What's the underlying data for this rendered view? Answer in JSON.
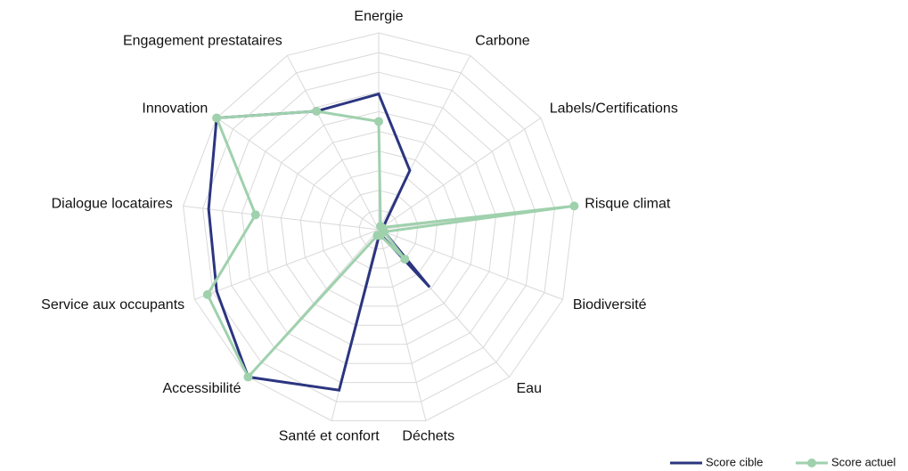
{
  "chart_data": {
    "type": "radar",
    "categories": [
      "Energie",
      "Carbone",
      "Labels/Certifications",
      "Risque climat",
      "Biodiversité",
      "Eau",
      "Déchets",
      "Santé et confort",
      "Accessibilité",
      "Service aux occupants",
      "Dialogue locataires",
      "Innovation",
      "Engagement prestataires"
    ],
    "series": [
      {
        "name": "Score cible",
        "color": "#2b3580",
        "values": [
          6.9,
          3.4,
          0.3,
          0.2,
          0.3,
          3.9,
          0.2,
          8.4,
          10,
          8.8,
          8.7,
          10,
          6.8
        ]
      },
      {
        "name": "Score actuel",
        "color": "#9fd1ad",
        "values": [
          5.5,
          0.2,
          0.2,
          10,
          0.3,
          2,
          0.3,
          0.3,
          10,
          9.3,
          6.3,
          10,
          6.8
        ]
      }
    ],
    "rlim": [
      0,
      10
    ],
    "rticks": [
      1,
      2,
      3,
      4,
      5,
      6,
      7,
      8,
      9,
      10
    ],
    "grid": true,
    "legend": "bottom-right"
  }
}
